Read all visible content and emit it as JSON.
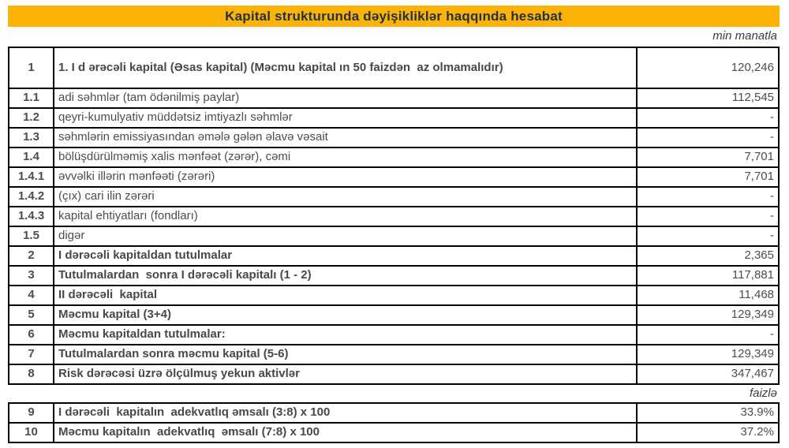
{
  "title": "Kapital strukturunda dəyişikliklər haqqında hesabat",
  "unit_top": "min manatla",
  "unit_bottom": "faizlə",
  "colors": {
    "title_bar_bg": "#FBB307",
    "title_text": "#243246",
    "table_text": "#4D4D4D",
    "border": "#000000"
  },
  "main_table": {
    "rows": [
      {
        "no": "1",
        "label": "1. I d ərəcəli kapital (Əsas kapital) (Məcmu kapital ın 50 faizdən  az olmamalıdır)",
        "value": "120,246",
        "bold": true,
        "tall": true
      },
      {
        "no": "1.1",
        "label": "adi səhmlər (tam ödənilmiş paylar)",
        "value": "112,545",
        "bold": false
      },
      {
        "no": "1.2",
        "label": "qeyri-kumulyativ müddətsiz imtiyazlı səhmlər",
        "value": "-",
        "bold": false
      },
      {
        "no": "1.3",
        "label": "səhmlərin emissiyasından əmələ gələn əlavə vəsait",
        "value": "-",
        "bold": false
      },
      {
        "no": "1.4",
        "label": "bölüşdürülməmiş xalis mənfəət (zərər), cəmi",
        "value": "7,701",
        "bold": false
      },
      {
        "no": "1.4.1",
        "label": "əvvəlki illərin mənfəəti (zərəri)",
        "value": "7,701",
        "bold": false
      },
      {
        "no": "1.4.2",
        "label": "(çıx) cari ilin zərəri",
        "value": "-",
        "bold": false
      },
      {
        "no": "1.4.3",
        "label": "kapital ehtiyatları (fondları)",
        "value": "-",
        "bold": false
      },
      {
        "no": "1.5",
        "label": "digər",
        "value": "-",
        "bold": false
      },
      {
        "no": "2",
        "label": "I dərəcəli kapitaldan tutulmalar",
        "value": "2,365",
        "bold": true
      },
      {
        "no": "3",
        "label": "Tutulmalardan  sonra I dərəcəli kapitalı (1 - 2)",
        "value": "117,881",
        "bold": true
      },
      {
        "no": "4",
        "label": "II dərəcəli  kapital",
        "value": "11,468",
        "bold": true
      },
      {
        "no": "5",
        "label": "Məcmu kapital (3+4)",
        "value": "129,349",
        "bold": true
      },
      {
        "no": "6",
        "label": "Məcmu kapitaldan tutulmalar:",
        "value": "-",
        "bold": true
      },
      {
        "no": "7",
        "label": "Tutulmalardan sonra məcmu kapital (5-6)",
        "value": "129,349",
        "bold": true
      },
      {
        "no": "8",
        "label": "Risk dərəcəsi üzrə ölçülmuş yekun aktivlər",
        "value": "347,467",
        "bold": true
      }
    ]
  },
  "ratio_table": {
    "rows": [
      {
        "no": "9",
        "label": "I dərəcəli  kapitalın  adekvatlıq əmsalı (3:8) x 100",
        "value": "33.9%",
        "bold": true
      },
      {
        "no": "10",
        "label": "Məcmu kapitalın  adekvatlıq  əmsalı (7:8) x 100",
        "value": "37.2%",
        "bold": true
      }
    ]
  }
}
